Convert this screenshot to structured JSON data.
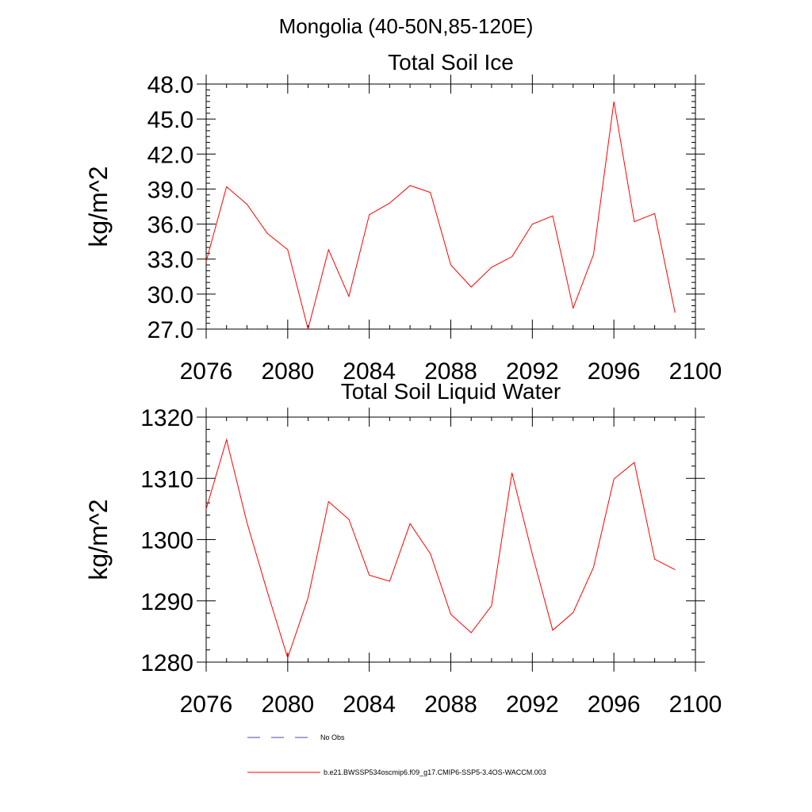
{
  "figure_title": "Mongolia (40-50N,85-120E)",
  "chart_data": [
    {
      "type": "line",
      "title": "Total Soil Ice",
      "xlabel": "",
      "ylabel": "kg/m^2",
      "xlim": [
        2076,
        2100
      ],
      "ylim": [
        27.0,
        48.0
      ],
      "xticks": [
        "2076",
        "2080",
        "2084",
        "2088",
        "2092",
        "2096",
        "2100"
      ],
      "yticks": [
        "27.0",
        "30.0",
        "33.0",
        "36.0",
        "39.0",
        "42.0",
        "45.0",
        "48.0"
      ],
      "series": [
        {
          "name": "b.e21.BWSSP534oscmip6.f09_g17.CMIP6-SSP5-3.4OS-WACCM.003",
          "color": "#ff0000",
          "x": [
            2076,
            2077,
            2078,
            2079,
            2080,
            2081,
            2082,
            2083,
            2084,
            2085,
            2086,
            2087,
            2088,
            2089,
            2090,
            2091,
            2092,
            2093,
            2094,
            2095,
            2096,
            2097,
            2098,
            2099
          ],
          "values": [
            32.8,
            39.2,
            37.7,
            35.2,
            33.8,
            27.0,
            33.8,
            29.8,
            36.8,
            37.8,
            39.3,
            38.7,
            32.5,
            30.6,
            32.3,
            33.2,
            36.0,
            36.7,
            28.8,
            33.4,
            46.5,
            36.2,
            36.9,
            28.4
          ]
        }
      ]
    },
    {
      "type": "line",
      "title": "Total Soil Liquid Water",
      "xlabel": "",
      "ylabel": "kg/m^2",
      "xlim": [
        2076,
        2100
      ],
      "ylim": [
        1280,
        1320
      ],
      "xticks": [
        "2076",
        "2080",
        "2084",
        "2088",
        "2092",
        "2096",
        "2100"
      ],
      "yticks": [
        "1280",
        "1290",
        "1300",
        "1310",
        "1320"
      ],
      "series": [
        {
          "name": "b.e21.BWSSP534oscmip6.f09_g17.CMIP6-SSP5-3.4OS-WACCM.003",
          "color": "#ff0000",
          "x": [
            2076,
            2077,
            2078,
            2079,
            2080,
            2081,
            2082,
            2083,
            2084,
            2085,
            2086,
            2087,
            2088,
            2089,
            2090,
            2091,
            2092,
            2093,
            2094,
            2095,
            2096,
            2097,
            2098,
            2099
          ],
          "values": [
            1305.0,
            1316.3,
            1302.8,
            1291.5,
            1280.7,
            1290.5,
            1306.2,
            1303.3,
            1294.2,
            1293.2,
            1302.6,
            1297.7,
            1287.8,
            1284.8,
            1289.2,
            1310.9,
            1297.6,
            1285.2,
            1288.1,
            1295.5,
            1309.9,
            1312.6,
            1296.8,
            1295.1
          ]
        }
      ]
    }
  ],
  "legend": [
    {
      "label": "No Obs",
      "color": "#4a4aa8",
      "style": "dashed"
    },
    {
      "label": "b.e21.BWSSP534oscmip6.f09_g17.CMIP6-SSP5-3.4OS-WACCM.003",
      "color": "#ff0000",
      "style": "solid"
    }
  ]
}
